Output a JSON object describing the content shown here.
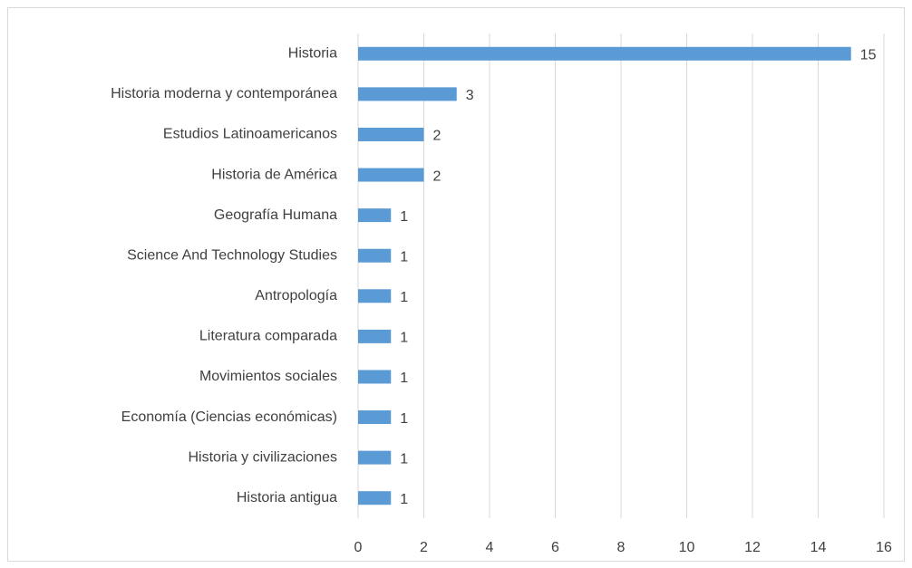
{
  "chart_data": {
    "type": "bar",
    "orientation": "horizontal",
    "categories": [
      "Historia",
      "Historia moderna y contemporánea",
      "Estudios Latinoamericanos",
      "Historia de América",
      "Geografía Humana",
      "Science And Technology Studies",
      "Antropología",
      "Literatura comparada",
      "Movimientos sociales",
      "Economía (Ciencias económicas)",
      "Historia y civilizaciones",
      "Historia antigua"
    ],
    "values": [
      15,
      3,
      2,
      2,
      1,
      1,
      1,
      1,
      1,
      1,
      1,
      1
    ],
    "color": "#5b9bd5",
    "xlim": [
      0,
      16
    ],
    "xticks": [
      0,
      2,
      4,
      6,
      8,
      10,
      12,
      14,
      16
    ],
    "grid": true
  }
}
